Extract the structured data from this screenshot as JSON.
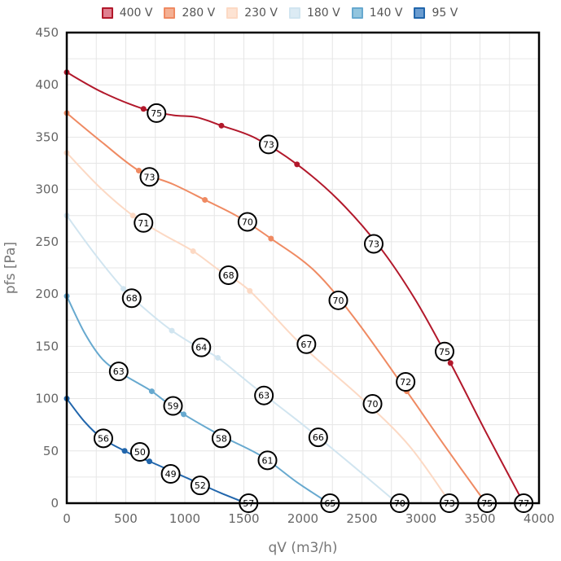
{
  "chart_data": {
    "type": "line",
    "xlabel": "qV (m3/h)",
    "ylabel": "pfs [Pa]",
    "xlim": [
      0,
      4000
    ],
    "ylim": [
      0,
      450
    ],
    "x_ticks": [
      "0",
      "500",
      "1000",
      "1500",
      "2000",
      "2500",
      "3000",
      "3500",
      "4000"
    ],
    "y_ticks": [
      "0",
      "50",
      "100",
      "150",
      "200",
      "250",
      "300",
      "350",
      "400",
      "450"
    ],
    "grid": true,
    "legend_position": "top-center",
    "series": [
      {
        "name": "400 V",
        "color": "#b2182b",
        "fill": "#e08090",
        "points": [
          [
            0,
            412
          ],
          [
            650,
            377
          ],
          [
            1310,
            361
          ],
          [
            1950,
            324
          ],
          [
            2650,
            245
          ],
          [
            3250,
            134
          ],
          [
            3870,
            0
          ]
        ],
        "curve": [
          [
            0,
            412
          ],
          [
            300,
            393
          ],
          [
            650,
            377
          ],
          [
            900,
            371
          ],
          [
            1100,
            369
          ],
          [
            1310,
            361
          ],
          [
            1600,
            349
          ],
          [
            1950,
            324
          ],
          [
            2300,
            290
          ],
          [
            2650,
            245
          ],
          [
            2950,
            195
          ],
          [
            3250,
            134
          ],
          [
            3550,
            68
          ],
          [
            3870,
            0
          ]
        ],
        "labels": [
          {
            "x": 760,
            "y": 373,
            "text": "75"
          },
          {
            "x": 1710,
            "y": 343,
            "text": "73"
          },
          {
            "x": 2600,
            "y": 248,
            "text": "73"
          },
          {
            "x": 3200,
            "y": 145,
            "text": "75"
          },
          {
            "x": 3870,
            "y": 0,
            "text": "77"
          }
        ]
      },
      {
        "name": "280 V",
        "color": "#ef8a62",
        "fill": "#f4b093",
        "points": [
          [
            0,
            373
          ],
          [
            610,
            318
          ],
          [
            1170,
            290
          ],
          [
            1730,
            253
          ],
          [
            2880,
            107
          ],
          [
            3550,
            0
          ]
        ],
        "curve": [
          [
            0,
            373
          ],
          [
            300,
            345
          ],
          [
            610,
            318
          ],
          [
            900,
            305
          ],
          [
            1170,
            290
          ],
          [
            1450,
            274
          ],
          [
            1730,
            253
          ],
          [
            2100,
            222
          ],
          [
            2450,
            175
          ],
          [
            2880,
            107
          ],
          [
            3200,
            55
          ],
          [
            3550,
            0
          ]
        ],
        "labels": [
          {
            "x": 700,
            "y": 312,
            "text": "73"
          },
          {
            "x": 1530,
            "y": 269,
            "text": "70"
          },
          {
            "x": 2300,
            "y": 194,
            "text": "70"
          },
          {
            "x": 2870,
            "y": 116,
            "text": "72"
          },
          {
            "x": 3560,
            "y": 0,
            "text": "75"
          }
        ]
      },
      {
        "name": "230 V",
        "color": "#fcd9c4",
        "fill": "#fde3d3",
        "points": [
          [
            0,
            335
          ],
          [
            560,
            275
          ],
          [
            1070,
            241
          ],
          [
            1550,
            203
          ],
          [
            3250,
            0
          ]
        ],
        "curve": [
          [
            0,
            335
          ],
          [
            280,
            302
          ],
          [
            560,
            275
          ],
          [
            800,
            258
          ],
          [
            1070,
            241
          ],
          [
            1300,
            222
          ],
          [
            1550,
            203
          ],
          [
            2000,
            150
          ],
          [
            2500,
            100
          ],
          [
            2900,
            55
          ],
          [
            3250,
            0
          ]
        ],
        "labels": [
          {
            "x": 650,
            "y": 268,
            "text": "71"
          },
          {
            "x": 1370,
            "y": 218,
            "text": "68"
          },
          {
            "x": 2030,
            "y": 152,
            "text": "67"
          },
          {
            "x": 2590,
            "y": 95,
            "text": "70"
          },
          {
            "x": 3240,
            "y": 0,
            "text": "73"
          }
        ]
      },
      {
        "name": "180 V",
        "color": "#d1e5f0",
        "fill": "#dcebf4",
        "points": [
          [
            0,
            275
          ],
          [
            480,
            205
          ],
          [
            890,
            165
          ],
          [
            1280,
            139
          ],
          [
            2800,
            0
          ]
        ],
        "curve": [
          [
            0,
            275
          ],
          [
            240,
            238
          ],
          [
            480,
            205
          ],
          [
            680,
            184
          ],
          [
            890,
            165
          ],
          [
            1100,
            150
          ],
          [
            1280,
            139
          ],
          [
            1600,
            110
          ],
          [
            2000,
            75
          ],
          [
            2400,
            38
          ],
          [
            2800,
            0
          ]
        ],
        "labels": [
          {
            "x": 550,
            "y": 196,
            "text": "68"
          },
          {
            "x": 1140,
            "y": 149,
            "text": "64"
          },
          {
            "x": 1670,
            "y": 103,
            "text": "63"
          },
          {
            "x": 2130,
            "y": 63,
            "text": "66"
          },
          {
            "x": 2820,
            "y": 0,
            "text": "70"
          }
        ]
      },
      {
        "name": "140 V",
        "color": "#67a9cf",
        "fill": "#92c5de",
        "points": [
          [
            0,
            198
          ],
          [
            450,
            125
          ],
          [
            720,
            107
          ],
          [
            990,
            85
          ],
          [
            2220,
            0
          ]
        ],
        "curve": [
          [
            0,
            198
          ],
          [
            150,
            163
          ],
          [
            300,
            138
          ],
          [
            450,
            125
          ],
          [
            600,
            115
          ],
          [
            720,
            107
          ],
          [
            850,
            96
          ],
          [
            990,
            85
          ],
          [
            1300,
            65
          ],
          [
            1650,
            45
          ],
          [
            1950,
            20
          ],
          [
            2220,
            0
          ]
        ],
        "labels": [
          {
            "x": 440,
            "y": 126,
            "text": "63"
          },
          {
            "x": 900,
            "y": 93,
            "text": "59"
          },
          {
            "x": 1310,
            "y": 62,
            "text": "58"
          },
          {
            "x": 1700,
            "y": 41,
            "text": "61"
          },
          {
            "x": 2230,
            "y": 0,
            "text": "65"
          }
        ]
      },
      {
        "name": "95 V",
        "color": "#2166ac",
        "fill": "#6a9cd0",
        "points": [
          [
            0,
            100
          ],
          [
            490,
            50
          ],
          [
            700,
            40
          ],
          [
            1520,
            0
          ]
        ],
        "curve": [
          [
            0,
            100
          ],
          [
            150,
            78
          ],
          [
            300,
            62
          ],
          [
            490,
            50
          ],
          [
            600,
            44
          ],
          [
            700,
            40
          ],
          [
            900,
            30
          ],
          [
            1100,
            20
          ],
          [
            1300,
            10
          ],
          [
            1520,
            0
          ]
        ],
        "labels": [
          {
            "x": 310,
            "y": 62,
            "text": "56"
          },
          {
            "x": 620,
            "y": 49,
            "text": "50"
          },
          {
            "x": 880,
            "y": 28,
            "text": "49"
          },
          {
            "x": 1130,
            "y": 17,
            "text": "52"
          },
          {
            "x": 1540,
            "y": 0,
            "text": "57"
          }
        ]
      }
    ]
  }
}
